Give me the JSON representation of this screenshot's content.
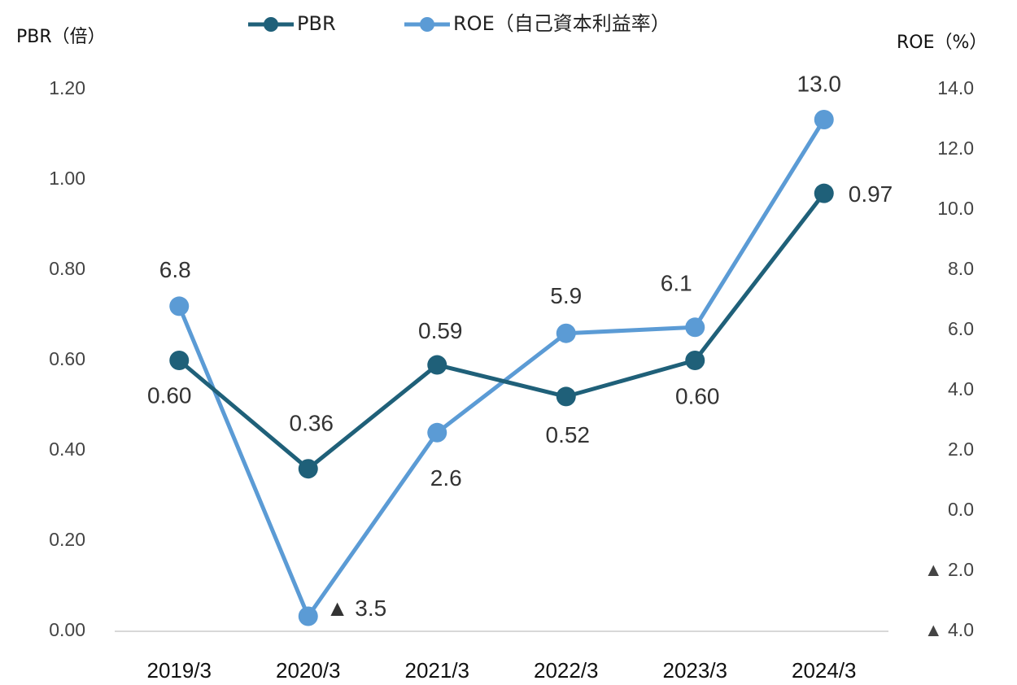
{
  "chart_data": {
    "type": "line",
    "y_axis_label": "PBR（倍）",
    "y2_axis_label": "ROE（%）",
    "categories": [
      "2019/3",
      "2020/3",
      "2021/3",
      "2022/3",
      "2023/3",
      "2024/3"
    ],
    "series": [
      {
        "name": "PBR",
        "color": "#1f6079",
        "values": [
          0.6,
          0.36,
          0.59,
          0.52,
          0.6,
          0.97
        ],
        "value_labels": [
          "0.60",
          "0.36",
          "0.59",
          "0.52",
          "0.60",
          "0.97"
        ]
      },
      {
        "name": "ROE（自己資本利益率）",
        "color": "#5b9bd5",
        "axis": "y2",
        "values": [
          6.8,
          -3.5,
          2.6,
          5.9,
          6.1,
          13.0
        ],
        "value_labels": [
          "6.8",
          "▲ 3.5",
          "2.6",
          "5.9",
          "6.1",
          "13.0"
        ]
      }
    ],
    "ylim": [
      0,
      1.2
    ],
    "yticks": [
      {
        "value": 0,
        "label": "0.00"
      },
      {
        "value": 0.2,
        "label": "0.20"
      },
      {
        "value": 0.4,
        "label": "0.40"
      },
      {
        "value": 0.6,
        "label": "0.60"
      },
      {
        "value": 0.8,
        "label": "0.80"
      },
      {
        "value": 1.0,
        "label": "1.00"
      },
      {
        "value": 1.2,
        "label": "1.20"
      }
    ],
    "y2lim": [
      -4,
      14
    ],
    "y2ticks": [
      {
        "value": -4,
        "label": "▲ 4.0"
      },
      {
        "value": -2,
        "label": "▲ 2.0"
      },
      {
        "value": 0,
        "label": "0.0"
      },
      {
        "value": 2,
        "label": "2.0"
      },
      {
        "value": 4,
        "label": "4.0"
      },
      {
        "value": 6,
        "label": "6.0"
      },
      {
        "value": 8,
        "label": "8.0"
      },
      {
        "value": 10,
        "label": "10.0"
      },
      {
        "value": 12,
        "label": "12.0"
      },
      {
        "value": 14,
        "label": "14.0"
      }
    ],
    "legend": "top"
  }
}
